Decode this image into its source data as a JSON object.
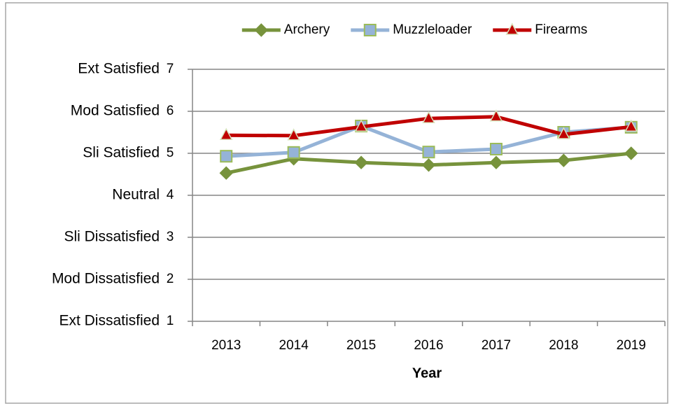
{
  "chart_data": {
    "type": "line",
    "x_label": "Year",
    "categories": [
      "2013",
      "2014",
      "2015",
      "2016",
      "2017",
      "2018",
      "2019"
    ],
    "series": [
      {
        "name": "Archery",
        "color": "#77933c",
        "marker": "diamond",
        "marker_edge": "#77933c",
        "values": [
          4.53,
          4.87,
          4.78,
          4.72,
          4.78,
          4.83,
          5.0
        ]
      },
      {
        "name": "Muzzleloader",
        "color": "#95b3d7",
        "marker": "square",
        "marker_edge": "#9bbb59",
        "values": [
          4.93,
          5.02,
          5.65,
          5.03,
          5.1,
          5.5,
          5.62
        ]
      },
      {
        "name": "Firearms",
        "color": "#c00000",
        "marker": "triangle",
        "marker_edge": "#d7e4bd",
        "values": [
          5.43,
          5.42,
          5.63,
          5.83,
          5.87,
          5.45,
          5.63
        ]
      }
    ],
    "ylim": [
      1,
      7
    ],
    "yticks": [
      1,
      2,
      3,
      4,
      5,
      6,
      7
    ],
    "y_level_labels": [
      "Ext Dissatisfied",
      "Mod Dissatisfied",
      "Sli Dissatisfied",
      "Neutral",
      "Sli Satisfied",
      "Mod Satisfied",
      "Ext Satisfied"
    ],
    "grid": true,
    "legend": "top"
  }
}
